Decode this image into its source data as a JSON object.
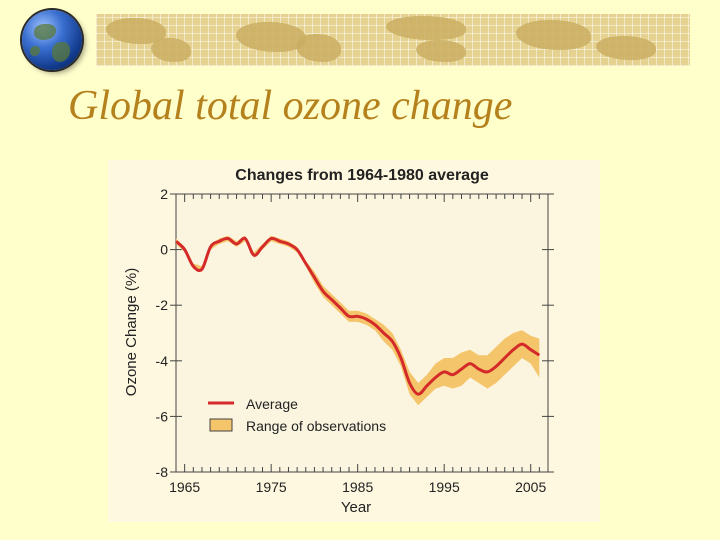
{
  "slide": {
    "title": "Global total ozone change"
  },
  "colors": {
    "average_line": "#d42a2a",
    "range_fill": "#f4c56a",
    "plot_bg": "#fbf5e0"
  },
  "chart_data": {
    "type": "line",
    "title": "Changes from 1964-1980 average",
    "xlabel": "Year",
    "ylabel": "Ozone Change (%)",
    "xlim": [
      1964,
      2007
    ],
    "ylim": [
      -8,
      2
    ],
    "xticks": [
      1965,
      1975,
      1985,
      1995,
      2005
    ],
    "yticks": [
      2,
      0,
      -2,
      -4,
      -6,
      -8
    ],
    "legend": {
      "position": "lower-left",
      "average_label": "Average",
      "range_label": "Range of observations"
    },
    "series": [
      {
        "name": "Average",
        "x": [
          1964,
          1965,
          1966,
          1967,
          1968,
          1969,
          1970,
          1971,
          1972,
          1973,
          1974,
          1975,
          1976,
          1977,
          1978,
          1979,
          1980,
          1981,
          1982,
          1983,
          1984,
          1985,
          1986,
          1987,
          1988,
          1989,
          1990,
          1991,
          1992,
          1993,
          1994,
          1995,
          1996,
          1997,
          1998,
          1999,
          2000,
          2001,
          2002,
          2003,
          2004,
          2005,
          2006
        ],
        "values": [
          0.3,
          0.0,
          -0.6,
          -0.7,
          0.1,
          0.3,
          0.4,
          0.2,
          0.4,
          -0.2,
          0.1,
          0.4,
          0.3,
          0.2,
          0.0,
          -0.5,
          -1.0,
          -1.5,
          -1.8,
          -2.1,
          -2.4,
          -2.4,
          -2.5,
          -2.7,
          -3.0,
          -3.3,
          -3.9,
          -4.8,
          -5.2,
          -4.9,
          -4.6,
          -4.4,
          -4.5,
          -4.3,
          -4.1,
          -4.3,
          -4.4,
          -4.2,
          -3.9,
          -3.6,
          -3.4,
          -3.6,
          -3.8
        ]
      },
      {
        "name": "Range of observations",
        "x": [
          1964,
          1965,
          1966,
          1967,
          1968,
          1969,
          1970,
          1971,
          1972,
          1973,
          1974,
          1975,
          1976,
          1977,
          1978,
          1979,
          1980,
          1981,
          1982,
          1983,
          1984,
          1985,
          1986,
          1987,
          1988,
          1989,
          1990,
          1991,
          1992,
          1993,
          1994,
          1995,
          1996,
          1997,
          1998,
          1999,
          2000,
          2001,
          2002,
          2003,
          2004,
          2005,
          2006
        ],
        "upper": [
          0.4,
          0.1,
          -0.5,
          -0.6,
          0.2,
          0.4,
          0.5,
          0.3,
          0.5,
          -0.1,
          0.2,
          0.5,
          0.4,
          0.3,
          0.1,
          -0.4,
          -0.8,
          -1.3,
          -1.6,
          -1.9,
          -2.2,
          -2.2,
          -2.3,
          -2.5,
          -2.7,
          -3.0,
          -3.6,
          -4.4,
          -4.8,
          -4.5,
          -4.1,
          -3.9,
          -3.9,
          -3.7,
          -3.6,
          -3.8,
          -3.8,
          -3.5,
          -3.2,
          -3.0,
          -2.9,
          -3.1,
          -3.2
        ],
        "lower": [
          0.2,
          -0.1,
          -0.7,
          -0.8,
          0.0,
          0.2,
          0.3,
          0.1,
          0.3,
          -0.3,
          0.0,
          0.3,
          0.2,
          0.1,
          -0.1,
          -0.6,
          -1.2,
          -1.7,
          -2.0,
          -2.3,
          -2.6,
          -2.6,
          -2.7,
          -2.9,
          -3.3,
          -3.6,
          -4.2,
          -5.2,
          -5.6,
          -5.3,
          -5.0,
          -4.9,
          -5.0,
          -4.9,
          -4.6,
          -4.8,
          -5.0,
          -4.8,
          -4.5,
          -4.2,
          -3.9,
          -4.1,
          -4.6
        ]
      }
    ]
  }
}
